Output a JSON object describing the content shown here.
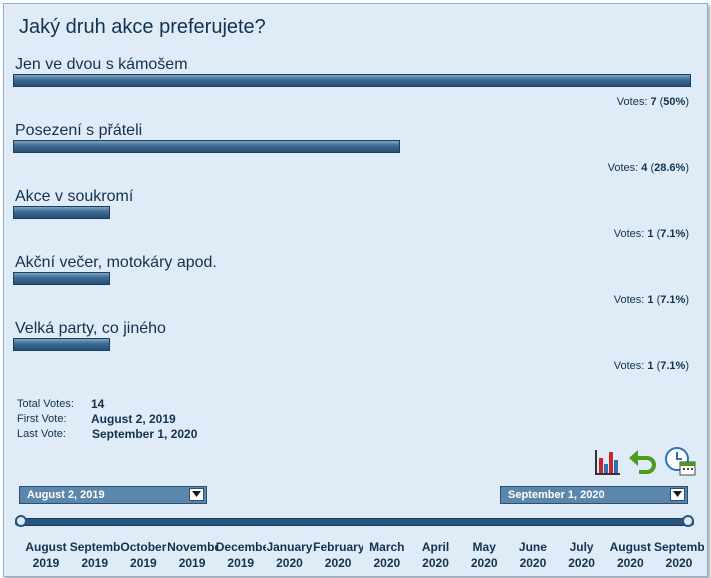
{
  "question": "Jaký druh akce preferujete?",
  "options": [
    {
      "label": "Jen ve dvou s kámošem",
      "votes_prefix": "Votes:",
      "count": "7",
      "pct_open": "(",
      "percent": "50%",
      "pct_close": ")",
      "fraction": 1.0
    },
    {
      "label": "Posezení s přáteli",
      "votes_prefix": "Votes:",
      "count": "4",
      "pct_open": "(",
      "percent": "28.6%",
      "pct_close": ")",
      "fraction": 0.571
    },
    {
      "label": "Akce v soukromí",
      "votes_prefix": "Votes:",
      "count": "1",
      "pct_open": "(",
      "percent": "7.1%",
      "pct_close": ")",
      "fraction": 0.143
    },
    {
      "label": "Akční večer, motokáry apod.",
      "votes_prefix": "Votes:",
      "count": "1",
      "pct_open": "(",
      "percent": "7.1%",
      "pct_close": ")",
      "fraction": 0.143
    },
    {
      "label": "Velká party, co jiného",
      "votes_prefix": "Votes:",
      "count": "1",
      "pct_open": "(",
      "percent": "7.1%",
      "pct_close": ")",
      "fraction": 0.143
    }
  ],
  "stats": {
    "total_label": "Total Votes:",
    "total_value": "14",
    "first_label": "First Vote:",
    "first_value": "August 2, 2019",
    "last_label": "Last Vote:",
    "last_value": "September 1, 2020"
  },
  "icons": [
    "bar-chart-icon",
    "undo-arrow-icon",
    "calendar-clock-icon"
  ],
  "range": {
    "start_value": "August 2, 2019",
    "end_value": "September 1, 2020",
    "start_fraction": 0.0,
    "end_fraction": 1.0
  },
  "timeline": [
    {
      "month": "August",
      "year": "2019"
    },
    {
      "month": "September",
      "year": "2019"
    },
    {
      "month": "October",
      "year": "2019"
    },
    {
      "month": "November",
      "year": "2019"
    },
    {
      "month": "December",
      "year": "2019"
    },
    {
      "month": "January",
      "year": "2020"
    },
    {
      "month": "February",
      "year": "2020"
    },
    {
      "month": "March",
      "year": "2020"
    },
    {
      "month": "April",
      "year": "2020"
    },
    {
      "month": "May",
      "year": "2020"
    },
    {
      "month": "June",
      "year": "2020"
    },
    {
      "month": "July",
      "year": "2020"
    },
    {
      "month": "August",
      "year": "2020"
    },
    {
      "month": "September",
      "year": "2020"
    }
  ],
  "colors": {
    "bar": "#3e6e96",
    "panel": "#dfecf8",
    "text": "#14314d",
    "dropdown": "#5b87ad"
  }
}
